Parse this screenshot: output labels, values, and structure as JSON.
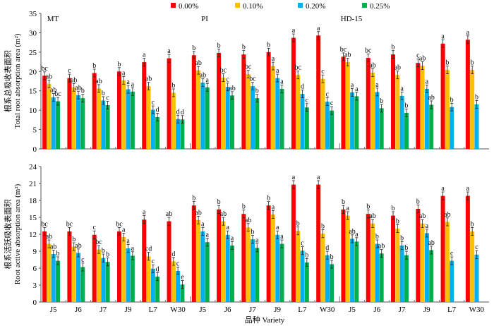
{
  "chart_data": {
    "type": "bar",
    "legend": {
      "placement": "top",
      "entries": [
        "0.00%",
        "0.10%",
        "0.20%",
        "0.25%"
      ]
    },
    "colors": [
      "#ff0000",
      "#ffc000",
      "#00b0f0",
      "#00b050"
    ],
    "group_labels": [
      "MT",
      "PI",
      "HD-15"
    ],
    "categories": [
      "J5",
      "J6",
      "J7",
      "J9",
      "L7",
      "W30",
      "J5",
      "J6",
      "J7",
      "J9",
      "L7",
      "W30",
      "J5",
      "J6",
      "J7",
      "J9",
      "L7",
      "W30"
    ],
    "xlabel": "品种 Variety",
    "panels": [
      {
        "ylabel_cn": "根系总吸收表面积",
        "ylabel_en": "Total root absorption area (m²)",
        "ylim": [
          0,
          35
        ],
        "yticks": [
          0,
          5,
          10,
          15,
          20,
          25,
          30,
          35
        ],
        "series": [
          {
            "name": "0.00%",
            "values": [
              18.9,
              18.3,
              19.6,
              20.0,
              22.4,
              23.4,
              24.2,
              24.8,
              24.4,
              25.0,
              28.7,
              29.3,
              23.8,
              23.5,
              24.4,
              22.2,
              27.2,
              28.2
            ],
            "labels": [
              "bc",
              "c",
              "b",
              "b",
              "a",
              "a",
              "b",
              "b",
              "b",
              "b",
              "a",
              "a",
              "bc",
              "bc",
              "b",
              "c",
              "a",
              "a"
            ]
          },
          {
            "name": "0.10%",
            "values": [
              16.8,
              15.9,
              15.6,
              17.7,
              16.2,
              14.5,
              20.3,
              18.4,
              19.3,
              21.4,
              19.1,
              18.1,
              22.4,
              19.7,
              19.1,
              21.5,
              20.4,
              20.4
            ],
            "labels": [
              "ab",
              "ab",
              "ab",
              "a",
              "ab",
              "b",
              "ab",
              "bc",
              "bc",
              "a",
              "bc",
              "c",
              "ab",
              "ab",
              "ab",
              "ab",
              "b",
              "b"
            ]
          },
          {
            "name": "0.20%",
            "values": [
              13.3,
              13.9,
              12.5,
              15.4,
              10.1,
              7.7,
              17.1,
              16.0,
              16.2,
              18.3,
              14.2,
              12.2,
              14.6,
              14.7,
              13.7,
              15.5,
              10.8,
              11.5
            ],
            "labels": [
              "ab",
              "ab",
              "b",
              "a",
              "c",
              "d",
              "ab",
              "c",
              "bc",
              "a",
              "d",
              "c",
              "a",
              "a",
              "a",
              "a",
              "b",
              "b"
            ]
          },
          {
            "name": "0.25%",
            "values": [
              12.3,
              13.1,
              11.3,
              14.8,
              8.2,
              7.6,
              15.9,
              13.8,
              13.1,
              15.5,
              10.7,
              9.9,
              13.6,
              10.5,
              9.3,
              11.4,
              null,
              null
            ],
            "labels": [
              "bc",
              "b",
              "c",
              "a",
              "d",
              "d",
              "a",
              "ab",
              "b",
              "a",
              "c",
              "c",
              "a",
              "b",
              "b",
              "ab",
              "",
              ""
            ]
          }
        ]
      },
      {
        "ylabel_cn": "根系活跃吸收表面积",
        "ylabel_en": "Root active absorption area (m²)",
        "ylim": [
          0,
          24
        ],
        "yticks": [
          0,
          3,
          6,
          9,
          12,
          15,
          18,
          21,
          24
        ],
        "series": [
          {
            "name": "0.00%",
            "values": [
              12.5,
              12.5,
              11.9,
              12.5,
              14.6,
              14.3,
              17.1,
              16.4,
              15.6,
              17.1,
              20.8,
              20.8,
              16.4,
              15.6,
              15.3,
              16.5,
              18.8,
              18.8
            ],
            "labels": [
              "bc",
              "bc",
              "c",
              "bc",
              "a",
              "ab",
              "b",
              "b",
              "b",
              "b",
              "a",
              "a",
              "b",
              "b",
              "b",
              "b",
              "a",
              "a"
            ]
          },
          {
            "name": "0.10%",
            "values": [
              10.3,
              9.8,
              9.3,
              11.5,
              8.1,
              7.2,
              14.5,
              14.3,
              13.2,
              15.5,
              12.6,
              12.1,
              15.3,
              13.9,
              13.0,
              13.9,
              14.2,
              12.5
            ],
            "labels": [
              "ab",
              "b",
              "bc",
              "a",
              "cd",
              "d",
              "ab",
              "ab",
              "ab",
              "a",
              "b",
              "b",
              "a",
              "ab",
              "b",
              "ab",
              "ab",
              "b"
            ]
          },
          {
            "name": "0.20%",
            "values": [
              8.5,
              8.7,
              7.8,
              9.5,
              5.9,
              5.5,
              12.5,
              11.9,
              11.1,
              11.9,
              9.1,
              8.3,
              11.2,
              10.3,
              10.0,
              12.2,
              7.3,
              8.4
            ],
            "labels": [
              "ab",
              "ab",
              "b",
              "a",
              "c",
              "c",
              "a",
              "a",
              "b",
              "a",
              "c",
              "d",
              "ab",
              "b",
              "b",
              "a",
              "c",
              "c"
            ]
          },
          {
            "name": "0.25%",
            "values": [
              7.3,
              6.2,
              7.1,
              8.2,
              4.5,
              3.1,
              10.6,
              10.0,
              9.6,
              10.3,
              7.0,
              6.7,
              10.7,
              8.6,
              8.3,
              9.2,
              null,
              null
            ],
            "labels": [
              "b",
              "c",
              "b",
              "a",
              "d",
              "e",
              "a",
              "a",
              "a",
              "a",
              "b",
              "b",
              "a",
              "ab",
              "b",
              "ab",
              "",
              ""
            ]
          }
        ]
      }
    ]
  }
}
